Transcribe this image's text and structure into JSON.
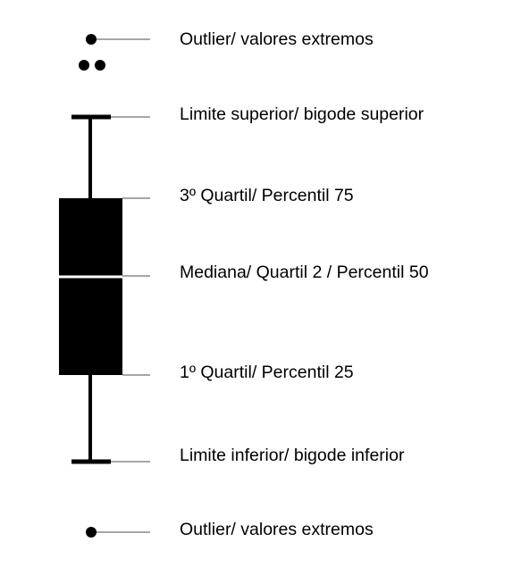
{
  "labels": {
    "outlier_top": "Outlier/ valores extremos",
    "upper_whisker": "Limite superior/ bigode superior",
    "q3": "3º Quartil/ Percentil 75",
    "median": "Mediana/ Quartil 2 / Percentil 50",
    "q1": "1º Quartil/ Percentil 25",
    "lower_whisker": "Limite inferior/ bigode inferior",
    "outlier_bottom": "Outlier/ valores extremos"
  },
  "colors": {
    "box": "#000000",
    "median_line": "#ffffff",
    "leader_line": "#a6a6a6",
    "text": "#000000"
  }
}
